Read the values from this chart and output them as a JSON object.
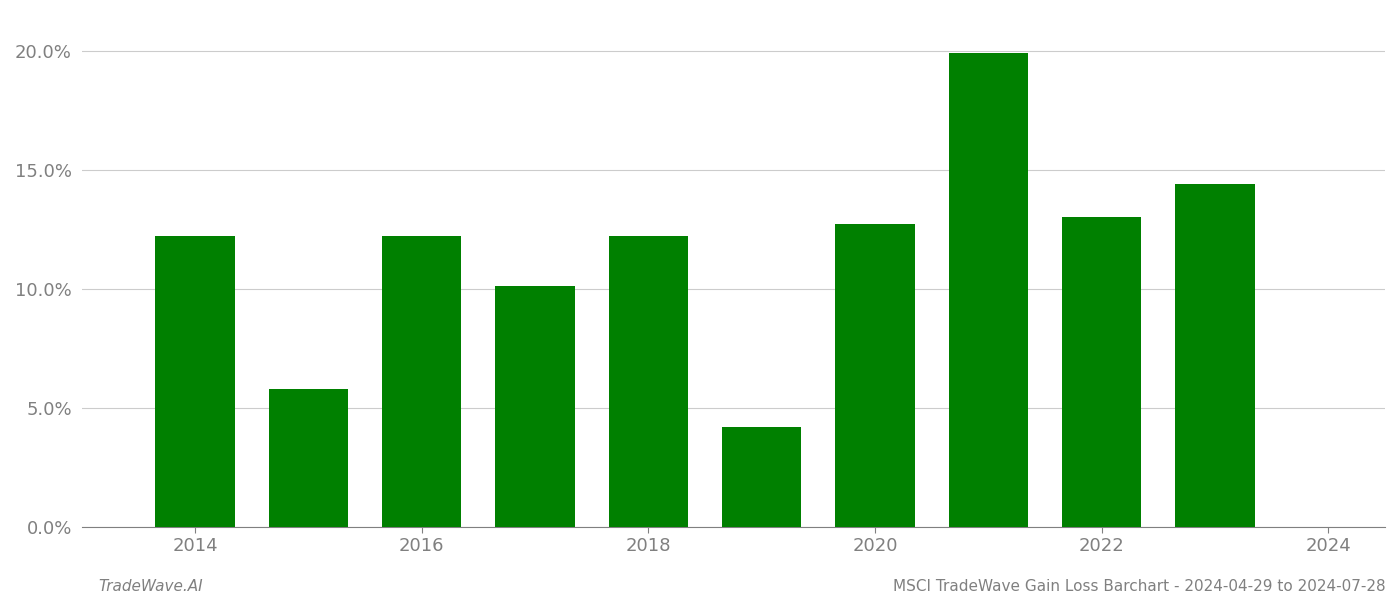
{
  "years": [
    2014,
    2015,
    2016,
    2017,
    2018,
    2019,
    2020,
    2021,
    2022,
    2023
  ],
  "values": [
    0.122,
    0.058,
    0.122,
    0.101,
    0.122,
    0.042,
    0.127,
    0.199,
    0.13,
    0.144
  ],
  "bar_color": "#008000",
  "background_color": "#ffffff",
  "grid_color": "#cccccc",
  "tick_color": "#808080",
  "title_text": "MSCI TradeWave Gain Loss Barchart - 2024-04-29 to 2024-07-28",
  "watermark_text": "TradeWave.AI",
  "ylim_min": 0.0,
  "ylim_max": 0.215,
  "yticks": [
    0.0,
    0.05,
    0.1,
    0.15,
    0.2
  ],
  "ytick_labels": [
    "0.0%",
    "5.0%",
    "10.0%",
    "15.0%",
    "20.0%"
  ],
  "xticks": [
    2014,
    2016,
    2018,
    2020,
    2022,
    2024
  ],
  "xlim_min": 2013.0,
  "xlim_max": 2024.5,
  "title_fontsize": 11,
  "tick_fontsize": 13,
  "watermark_fontsize": 11,
  "bar_width": 0.7
}
